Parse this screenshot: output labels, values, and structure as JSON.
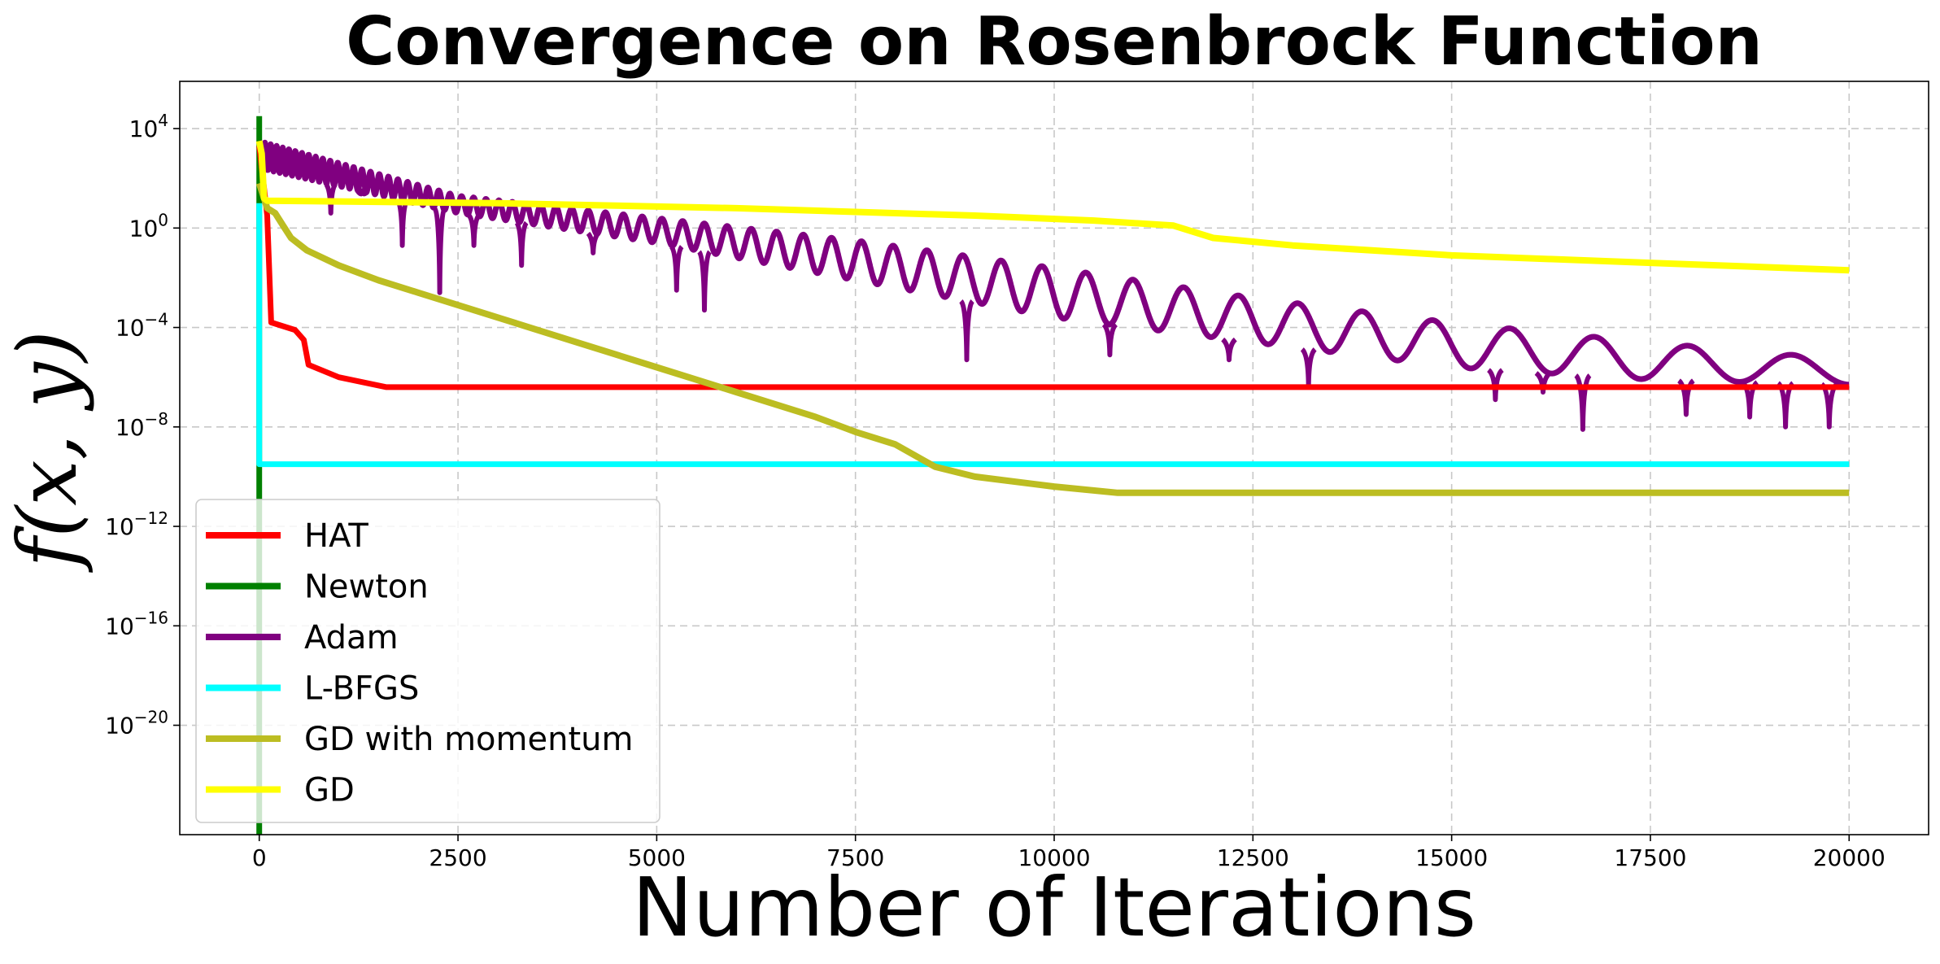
{
  "chart_data": {
    "type": "line",
    "title": "Convergence on Rosenbrock Function",
    "xlabel": "Number of Iterations",
    "ylabel": "f(x, y)",
    "xlim": [
      -1000,
      21000
    ],
    "ylim_log10": [
      -24.4,
      5.9
    ],
    "yscale": "log",
    "grid": true,
    "legend_position": "lower-left",
    "x_ticks": [
      0,
      2500,
      5000,
      7500,
      10000,
      12500,
      15000,
      17500,
      20000
    ],
    "x_tick_labels": [
      "0",
      "2500",
      "5000",
      "7500",
      "10000",
      "12500",
      "15000",
      "17500",
      "20000"
    ],
    "y_ticks_log10": [
      4,
      0,
      -4,
      -8,
      -12,
      -16,
      -20
    ],
    "y_tick_labels": [
      {
        "base": "10",
        "exp": "4"
      },
      {
        "base": "10",
        "exp": "0"
      },
      {
        "base": "10",
        "exp": "−4"
      },
      {
        "base": "10",
        "exp": "−8"
      },
      {
        "base": "10",
        "exp": "−12"
      },
      {
        "base": "10",
        "exp": "−16"
      },
      {
        "base": "10",
        "exp": "−20"
      }
    ],
    "series": [
      {
        "name": "HAT",
        "color": "#ff0000",
        "x": [
          0,
          100,
          150,
          450,
          560,
          620,
          1000,
          1600,
          20000
        ],
        "log10_y": [
          3.3,
          0.5,
          -3.8,
          -4.1,
          -4.5,
          -5.5,
          -6.0,
          -6.4,
          -6.4
        ]
      },
      {
        "name": "Newton",
        "color": "#008000",
        "x": [
          0,
          0
        ],
        "log10_y": [
          4.5,
          -24.4
        ]
      },
      {
        "name": "Adam",
        "color": "#800080",
        "pattern": "oscillating",
        "x_start": 0,
        "x_end": 20000,
        "upper_log10_y": [
          [
            0,
            3.5
          ],
          [
            2500,
            1.3
          ],
          [
            5000,
            0.4
          ],
          [
            7500,
            -0.5
          ],
          [
            10000,
            -1.6
          ],
          [
            12500,
            -2.8
          ],
          [
            15000,
            -3.8
          ],
          [
            17500,
            -4.6
          ],
          [
            20000,
            -5.3
          ]
        ],
        "lower_log10_y": [
          [
            0,
            2.4
          ],
          [
            2500,
            0.6
          ],
          [
            5000,
            -0.6
          ],
          [
            7500,
            -2.1
          ],
          [
            10000,
            -3.6
          ],
          [
            12500,
            -4.6
          ],
          [
            15000,
            -5.6
          ],
          [
            17500,
            -6.1
          ],
          [
            20000,
            -6.3
          ]
        ],
        "cusp_dips": [
          [
            900,
            0.6
          ],
          [
            1300,
            1.5
          ],
          [
            1800,
            -0.7
          ],
          [
            2270,
            -2.6
          ],
          [
            2700,
            -0.7
          ],
          [
            3300,
            -1.5
          ],
          [
            4200,
            -1.0
          ],
          [
            5250,
            -2.5
          ],
          [
            5600,
            -3.3
          ],
          [
            8900,
            -5.3
          ],
          [
            10700,
            -5.1
          ],
          [
            12200,
            -5.3
          ],
          [
            13200,
            -6.3
          ],
          [
            15550,
            -6.9
          ],
          [
            16150,
            -6.6
          ],
          [
            16650,
            -8.1
          ],
          [
            17950,
            -7.5
          ],
          [
            18750,
            -7.6
          ],
          [
            19200,
            -8.0
          ],
          [
            19750,
            -8.0
          ]
        ]
      },
      {
        "name": "L-BFGS",
        "color": "#00ffff",
        "x": [
          0,
          0,
          20000
        ],
        "log10_y": [
          1.0,
          -9.5,
          -9.5
        ]
      },
      {
        "name": "GD with momentum",
        "color": "#bcbd22",
        "x": [
          0,
          100,
          200,
          300,
          400,
          600,
          1000,
          1500,
          2000,
          3000,
          4000,
          5000,
          6000,
          7000,
          7500,
          8000,
          8500,
          9000,
          10000,
          10800,
          20000
        ],
        "log10_y": [
          1.8,
          0.8,
          0.6,
          0.1,
          -0.4,
          -0.9,
          -1.5,
          -2.1,
          -2.6,
          -3.6,
          -4.6,
          -5.6,
          -6.6,
          -7.6,
          -8.2,
          -8.7,
          -9.6,
          -10.0,
          -10.4,
          -10.65,
          -10.65
        ]
      },
      {
        "name": "GD",
        "color": "#ffff00",
        "x": [
          0,
          30,
          60,
          100,
          3000,
          6000,
          9000,
          10500,
          11500,
          12000,
          13000,
          15000,
          17500,
          20000
        ],
        "log10_y": [
          3.5,
          3.0,
          1.2,
          1.1,
          1.0,
          0.8,
          0.5,
          0.3,
          0.1,
          -0.4,
          -0.7,
          -1.1,
          -1.4,
          -1.7
        ]
      }
    ]
  }
}
